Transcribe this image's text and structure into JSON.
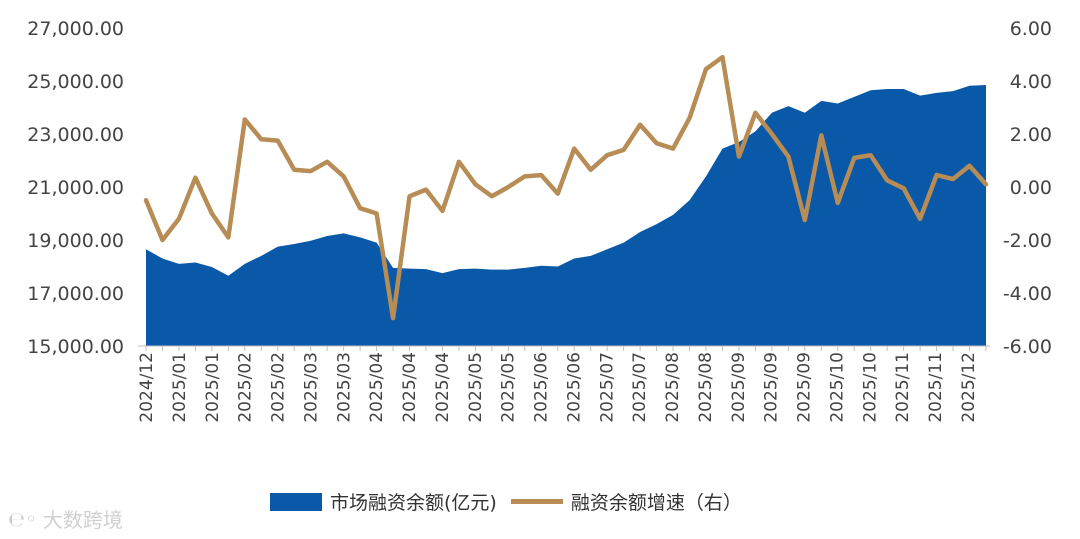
{
  "chart_data": {
    "type": "area+line",
    "left_axis": {
      "ylim": [
        15000,
        27000
      ],
      "ticks": [
        "15,000.00",
        "17,000.00",
        "19,000.00",
        "21,000.00",
        "23,000.00",
        "25,000.00",
        "27,000.00"
      ]
    },
    "right_axis": {
      "ylim": [
        -6,
        6
      ],
      "ticks": [
        "-6.00",
        "-4.00",
        "-2.00",
        "0.00",
        "2.00",
        "4.00",
        "6.00"
      ]
    },
    "x_tick_labels": [
      "2024/12",
      "2025/01",
      "2025/01",
      "2025/02",
      "2025/02",
      "2025/03",
      "2025/03",
      "2025/04",
      "2025/04",
      "2025/04",
      "2025/05",
      "2025/05",
      "2025/06",
      "2025/06",
      "2025/07",
      "2025/07",
      "2025/08",
      "2025/08",
      "2025/09",
      "2025/09",
      "2025/09",
      "2025/10",
      "2025/10",
      "2025/11",
      "2025/11",
      "2025/12"
    ],
    "series": [
      {
        "name": "市场融资余额(亿元)",
        "type": "area",
        "axis": "left",
        "color": "#0a58a8",
        "values": [
          18650,
          18300,
          18100,
          18150,
          17980,
          17650,
          18100,
          18400,
          18750,
          18850,
          18970,
          19150,
          19250,
          19100,
          18900,
          17950,
          17920,
          17900,
          17750,
          17900,
          17920,
          17880,
          17880,
          17950,
          18030,
          18000,
          18300,
          18400,
          18650,
          18900,
          19300,
          19600,
          19950,
          20500,
          21400,
          22450,
          22700,
          23100,
          23800,
          24050,
          23800,
          24250,
          24150,
          24400,
          24650,
          24700,
          24700,
          24450,
          24550,
          24620,
          24820,
          24850
        ]
      },
      {
        "name": "融资余额增速（右）",
        "type": "line",
        "axis": "right",
        "color": "#b88c55",
        "values": [
          -0.5,
          -2.0,
          -1.2,
          0.35,
          -1.0,
          -1.9,
          2.55,
          1.8,
          1.75,
          0.65,
          0.6,
          0.95,
          0.4,
          -0.8,
          -1.0,
          -4.95,
          -0.35,
          -0.1,
          -0.9,
          0.95,
          0.1,
          -0.35,
          0.0,
          0.4,
          0.45,
          -0.25,
          1.45,
          0.65,
          1.2,
          1.4,
          2.35,
          1.65,
          1.45,
          2.6,
          4.45,
          4.9,
          1.15,
          2.8,
          2.0,
          1.15,
          -1.25,
          1.95,
          -0.6,
          1.1,
          1.2,
          0.25,
          -0.05,
          -1.2,
          0.45,
          0.3,
          0.8,
          0.1
        ]
      }
    ]
  },
  "legend": {
    "area_label": "市场融资余额(亿元)",
    "line_label": "融资余额增速（右）"
  },
  "watermark": {
    "text": "大数跨境"
  }
}
